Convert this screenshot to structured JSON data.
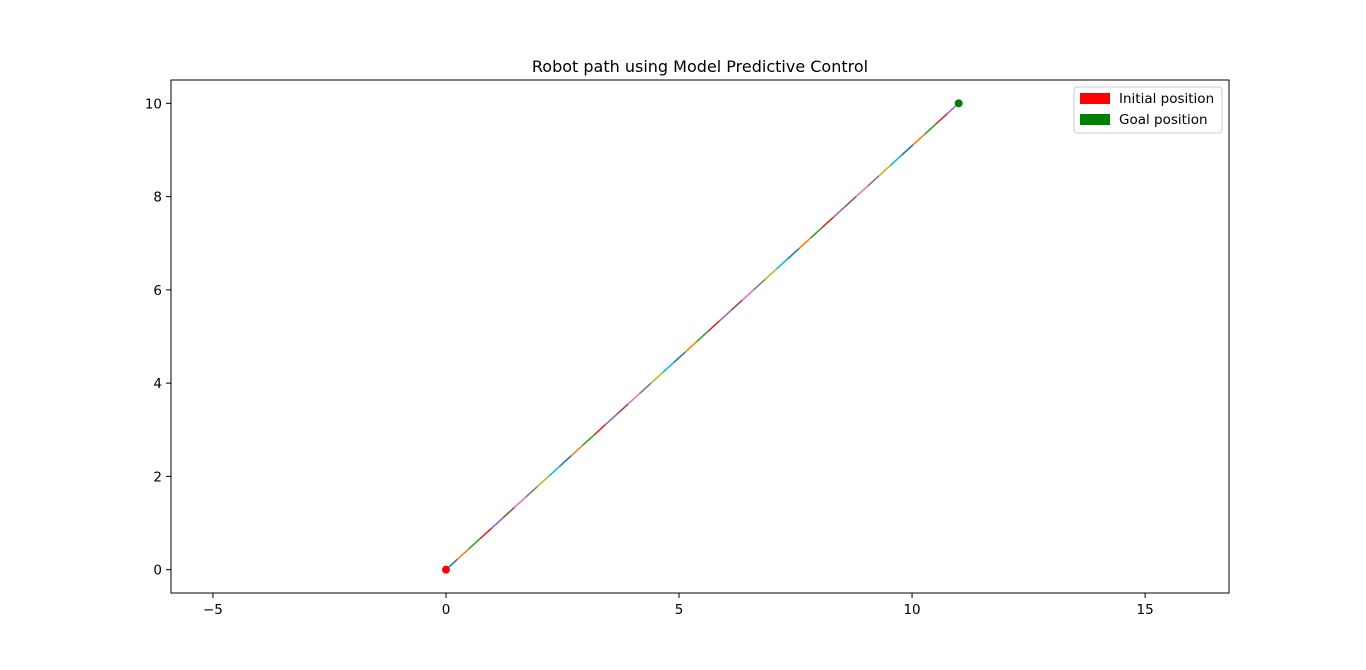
{
  "chart_data": {
    "type": "line",
    "title": "Robot path using Model Predictive Control",
    "xlabel": "",
    "ylabel": "",
    "xlim": [
      -5.9,
      16.8
    ],
    "ylim": [
      -0.5,
      10.5
    ],
    "xticks": [
      -5,
      0,
      5,
      10,
      15
    ],
    "yticks": [
      0,
      2,
      4,
      6,
      8,
      10
    ],
    "grid": false,
    "legend_position": "top-right",
    "legend": [
      {
        "label": "Initial position",
        "color": "#ff0000"
      },
      {
        "label": "Goal position",
        "color": "#008000"
      }
    ],
    "path": {
      "start": [
        0,
        0
      ],
      "end": [
        11,
        10
      ],
      "segment_count": 45,
      "segment_colors": [
        "#1f77b4",
        "#ff7f0e",
        "#2ca02c",
        "#d62728",
        "#9467bd",
        "#8c564b",
        "#e377c2",
        "#7f7f7f",
        "#bcbd22",
        "#17becf"
      ]
    },
    "markers": [
      {
        "name": "initial-position",
        "x": 0,
        "y": 0,
        "color": "#ff0000"
      },
      {
        "name": "goal-position",
        "x": 11,
        "y": 10,
        "color": "#008000"
      }
    ]
  }
}
